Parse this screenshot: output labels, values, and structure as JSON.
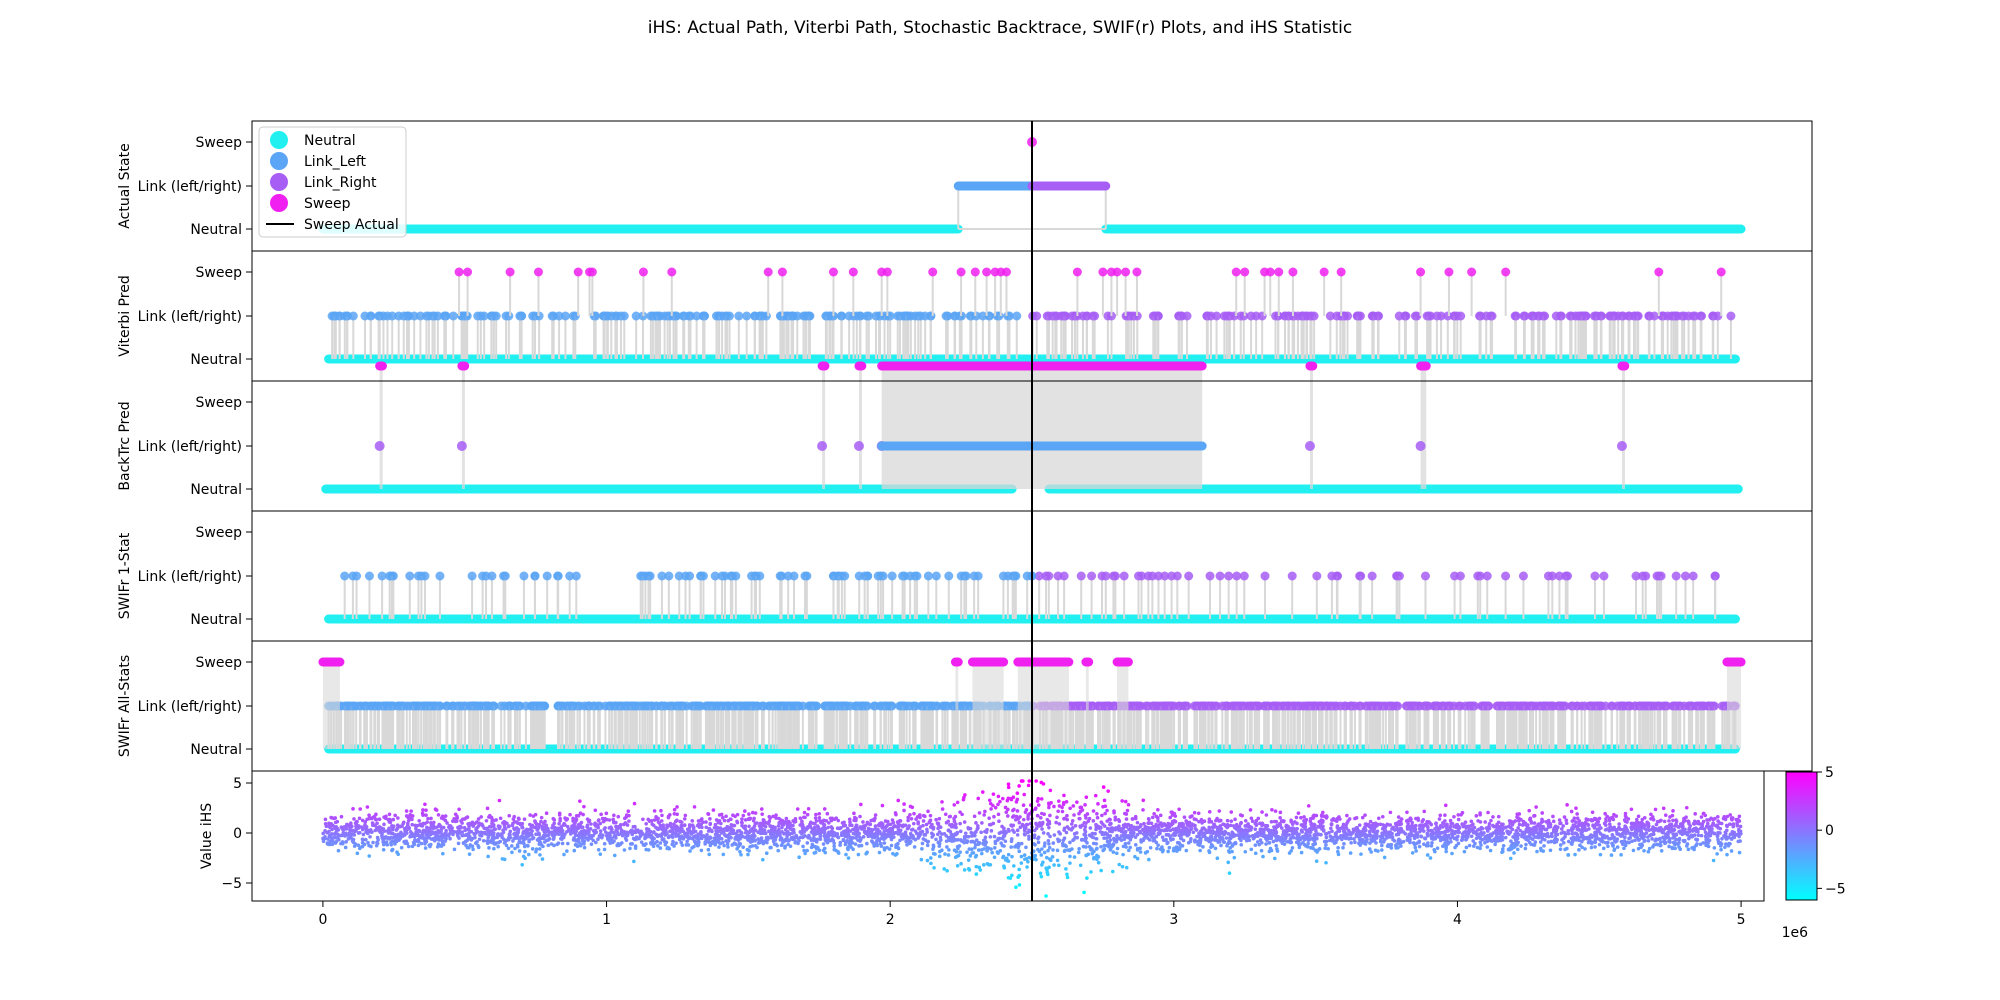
{
  "figure": {
    "title": "iHS: Actual Path, Viterbi Path, Stochastic Backtrace, SWIF(r) Plots, and iHS Statistic",
    "x_offset_label": "1e6"
  },
  "chart_data": [
    {
      "type": "scatter",
      "panel": "actual",
      "ylabel": "Actual State",
      "yticks": [
        "Neutral",
        "Link (left/right)",
        "Sweep"
      ],
      "xlim": [
        -250000,
        5250000
      ],
      "sweep_line_x": 2500000,
      "segments": [
        {
          "state": "Neutral",
          "x": [
            0,
            2240000
          ]
        },
        {
          "state": "Link_Left",
          "x": [
            2240000,
            2500000
          ]
        },
        {
          "state": "Sweep",
          "x": [
            2500000,
            2500000
          ]
        },
        {
          "state": "Link_Right",
          "x": [
            2500000,
            2760000
          ]
        },
        {
          "state": "Neutral",
          "x": [
            2760000,
            5000000
          ]
        }
      ],
      "legend": {
        "placement": "upper-left",
        "entries": [
          {
            "label": "Neutral",
            "color": "#22f0f0"
          },
          {
            "label": "Link_Left",
            "color": "#5aa5f5"
          },
          {
            "label": "Link_Right",
            "color": "#a75ef5"
          },
          {
            "label": "Sweep",
            "color": "#f020f0"
          },
          {
            "label": "Sweep Actual",
            "color": "#000000"
          }
        ]
      }
    },
    {
      "type": "scatter",
      "panel": "viterbi",
      "ylabel": "Viterbi Pred",
      "yticks": [
        "Neutral",
        "Link (left/right)",
        "Sweep"
      ],
      "sweep_positions_mb": [
        0.48,
        0.51,
        0.66,
        0.76,
        0.9,
        0.94,
        0.95,
        1.13,
        1.23,
        1.57,
        1.62,
        1.8,
        1.87,
        1.97,
        1.99,
        2.15,
        2.25,
        2.3,
        2.34,
        2.37,
        2.39,
        2.41,
        2.66,
        2.75,
        2.78,
        2.8,
        2.83,
        2.87,
        3.22,
        3.25,
        3.32,
        3.34,
        3.37,
        3.42,
        3.53,
        3.59,
        3.87,
        3.97,
        4.05,
        4.17,
        4.71,
        4.93
      ],
      "link_density": 0.85
    },
    {
      "type": "scatter",
      "panel": "backtrace",
      "ylabel": "BackTrc Pred",
      "yticks": [
        "Neutral",
        "Link (left/right)",
        "Sweep"
      ],
      "sweep_clusters_mb": [
        [
          0.2,
          0.21
        ],
        [
          0.49,
          0.5
        ],
        [
          1.76,
          1.77
        ],
        [
          1.89,
          1.9
        ],
        [
          1.97,
          3.1
        ],
        [
          3.48,
          3.49
        ],
        [
          3.87,
          3.89
        ],
        [
          4.58,
          4.59
        ]
      ],
      "neutral_gap_mb": [
        2.43,
        2.56
      ]
    },
    {
      "type": "scatter",
      "panel": "swifr_1stat",
      "ylabel": "SWIFr 1-Stat",
      "yticks": [
        "Neutral",
        "Link (left/right)",
        "Sweep"
      ],
      "link_density": 0.5
    },
    {
      "type": "scatter",
      "panel": "swifr_allstats",
      "ylabel": "SWIFr All-Stats",
      "yticks": [
        "Neutral",
        "Link (left/right)",
        "Sweep"
      ],
      "sweep_clusters_mb": [
        [
          0.0,
          0.06
        ],
        [
          2.23,
          2.24
        ],
        [
          2.29,
          2.4
        ],
        [
          2.45,
          2.63
        ],
        [
          2.69,
          2.7
        ],
        [
          2.8,
          2.84
        ],
        [
          4.95,
          5.0
        ]
      ],
      "link_density": 1.0
    },
    {
      "type": "scatter",
      "panel": "ihs",
      "ylabel": "Value iHS",
      "ylim": [
        -6.8,
        6.2
      ],
      "yticks": [
        -5,
        0,
        5
      ],
      "x_range": [
        0,
        5000000
      ],
      "colorbar": {
        "range": [
          -6,
          5
        ],
        "ticks": [
          -5,
          0,
          5
        ],
        "color_low": "#00ffff",
        "color_high": "#ff00ff"
      }
    }
  ],
  "x_axis": {
    "ticks": [
      0,
      1,
      2,
      3,
      4,
      5
    ],
    "scale": 1000000
  },
  "colors": {
    "neutral": "#22f0f0",
    "link_left": "#5aa5f5",
    "link_right": "#a75ef5",
    "sweep": "#f020f0",
    "connector": "#d8d8d8"
  }
}
